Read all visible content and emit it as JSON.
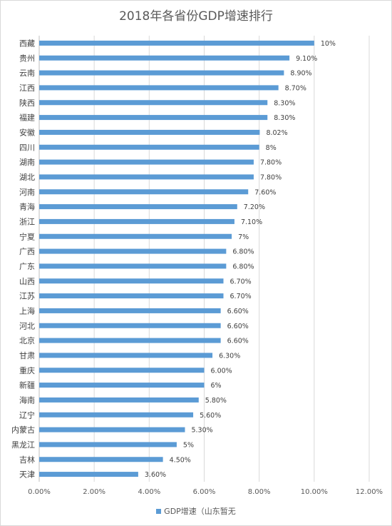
{
  "chart_data": {
    "type": "bar",
    "orientation": "horizontal",
    "title": "2018年各省份GDP增速排行",
    "categories": [
      "西藏",
      "贵州",
      "云南",
      "江西",
      "陕西",
      "福建",
      "安徽",
      "四川",
      "湖南",
      "湖北",
      "河南",
      "青海",
      "浙江",
      "宁夏",
      "广西",
      "广东",
      "山西",
      "江苏",
      "上海",
      "河北",
      "北京",
      "甘肃",
      "重庆",
      "新疆",
      "海南",
      "辽宁",
      "内蒙古",
      "黑龙江",
      "吉林",
      "天津"
    ],
    "series": [
      {
        "name": "GDP增速（山东暂无",
        "color": "#5b9bd5",
        "values": [
          10,
          9.1,
          8.9,
          8.7,
          8.3,
          8.3,
          8.02,
          8,
          7.8,
          7.8,
          7.6,
          7.2,
          7.1,
          7,
          6.8,
          6.8,
          6.7,
          6.7,
          6.6,
          6.6,
          6.6,
          6.3,
          6.0,
          6,
          5.8,
          5.6,
          5.3,
          5,
          4.5,
          3.6
        ],
        "data_labels": [
          "10%",
          "9.10%",
          "8.90%",
          "8.70%",
          "8.30%",
          "8.30%",
          "8.02%",
          "8%",
          "7.80%",
          "7.80%",
          "7.60%",
          "7.20%",
          "7.10%",
          "7%",
          "6.80%",
          "6.80%",
          "6.70%",
          "6.70%",
          "6.60%",
          "6.60%",
          "6.60%",
          "6.30%",
          "6.00%",
          "6%",
          "5.80%",
          "5.60%",
          "5.30%",
          "5%",
          "4.50%",
          "3.60%"
        ]
      }
    ],
    "xlim": [
      0,
      12
    ],
    "xticks": [
      0,
      2,
      4,
      6,
      8,
      10,
      12
    ],
    "xtick_labels": [
      "0.00%",
      "2.00%",
      "4.00%",
      "6.00%",
      "8.00%",
      "10.00%",
      "12.00%"
    ],
    "grid": "vertical",
    "legend_position": "bottom"
  }
}
